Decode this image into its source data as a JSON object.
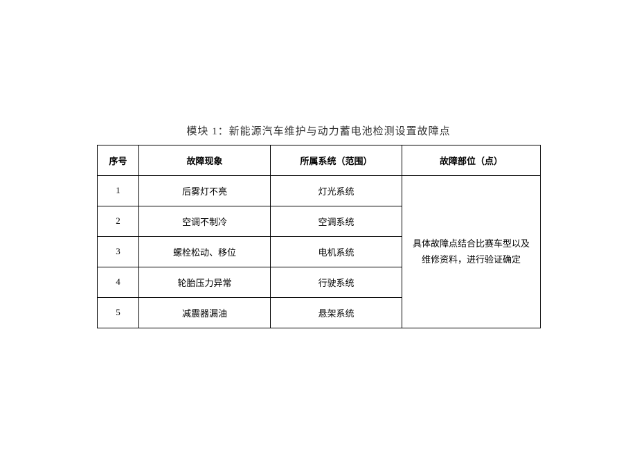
{
  "title": "模块 1：新能源汽车维护与动力蓄电池检测设置故障点",
  "table": {
    "headers": {
      "seq": "序号",
      "symptom": "故障现象",
      "system": "所属系统（范围）",
      "location": "故障部位（点）"
    },
    "rows": [
      {
        "seq": "1",
        "symptom": "后雾灯不亮",
        "system": "灯光系统"
      },
      {
        "seq": "2",
        "symptom": "空调不制冷",
        "system": "空调系统"
      },
      {
        "seq": "3",
        "symptom": "螺栓松动、移位",
        "system": "电机系统"
      },
      {
        "seq": "4",
        "symptom": "轮胎压力异常",
        "system": "行驶系统"
      },
      {
        "seq": "5",
        "symptom": "减震器漏油",
        "system": "悬架系统"
      }
    ],
    "merged_location_line1": "具体故障点结合比赛车型以及",
    "merged_location_line2": "维修资料，进行验证确定"
  },
  "colors": {
    "background": "#ffffff",
    "text": "#000000",
    "title_text": "#333333",
    "border": "#000000"
  },
  "typography": {
    "title_fontsize": 15,
    "cell_fontsize": 13,
    "header_fontweight": "bold"
  }
}
